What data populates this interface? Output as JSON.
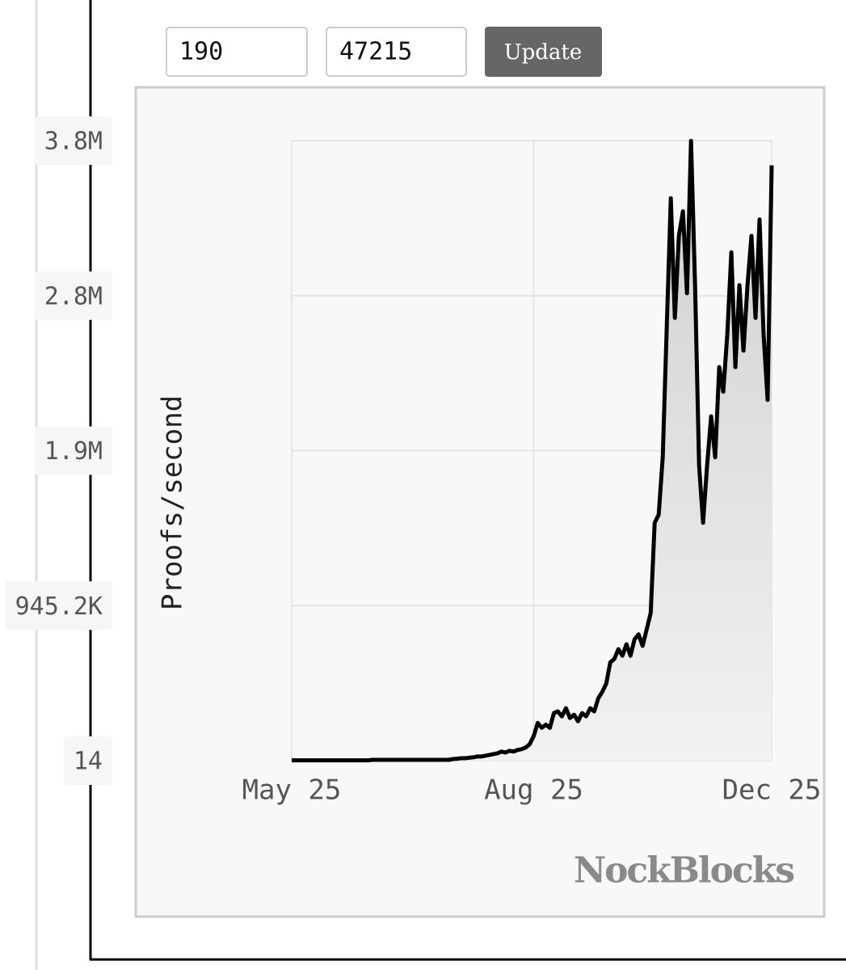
{
  "controls": {
    "inputs": [
      "190",
      "47215"
    ],
    "button": "Update"
  },
  "chart_data": {
    "type": "area",
    "y_label": "Proofs/second",
    "watermark": "NockBlocks",
    "color": "#000000",
    "values": [
      2000,
      2000,
      2000,
      2000,
      2000,
      2000,
      2000,
      2000,
      2000,
      2000,
      2000,
      2000,
      2000,
      2000,
      2000,
      2000,
      2000,
      2000,
      2000,
      2000,
      5000,
      5000,
      5000,
      5000,
      5000,
      5000,
      5000,
      5000,
      5000,
      5000,
      5000,
      5000,
      5000,
      5000,
      5000,
      5000,
      5000,
      5000,
      5000,
      5000,
      10000,
      12000,
      15000,
      15000,
      18000,
      20000,
      25000,
      25000,
      30000,
      35000,
      40000,
      45000,
      55000,
      50000,
      60000,
      55000,
      65000,
      70000,
      80000,
      100000,
      150000,
      230000,
      200000,
      220000,
      200000,
      290000,
      300000,
      270000,
      320000,
      260000,
      280000,
      240000,
      290000,
      270000,
      320000,
      300000,
      380000,
      420000,
      470000,
      600000,
      620000,
      680000,
      640000,
      710000,
      640000,
      740000,
      770000,
      700000,
      800000,
      900000,
      1450000,
      1500000,
      1850000,
      2650000,
      3430000,
      2700000,
      3200000,
      3350000,
      2850000,
      3780000,
      2900000,
      1800000,
      1450000,
      1800000,
      2100000,
      1850000,
      2400000,
      2250000,
      2600000,
      3100000,
      2400000,
      2900000,
      2500000,
      2900000,
      3200000,
      2700000,
      3300000,
      2600000,
      2200000,
      3630000
    ],
    "xlim": [
      0,
      119
    ],
    "xticks": [
      {
        "value": 0,
        "label": "May 25"
      },
      {
        "value": 60,
        "label": "Aug 25"
      },
      {
        "value": 119,
        "label": "Dec 25"
      }
    ],
    "ylim": [
      14,
      3780800
    ],
    "yticks": [
      14,
      {
        "value": 945200,
        "label": "945.2K"
      },
      {
        "value": 1890400,
        "label": "1.9M"
      },
      {
        "value": 2835600,
        "label": "2.8M"
      },
      {
        "value": 3780800,
        "label": "3.8M"
      }
    ],
    "grid": true
  }
}
